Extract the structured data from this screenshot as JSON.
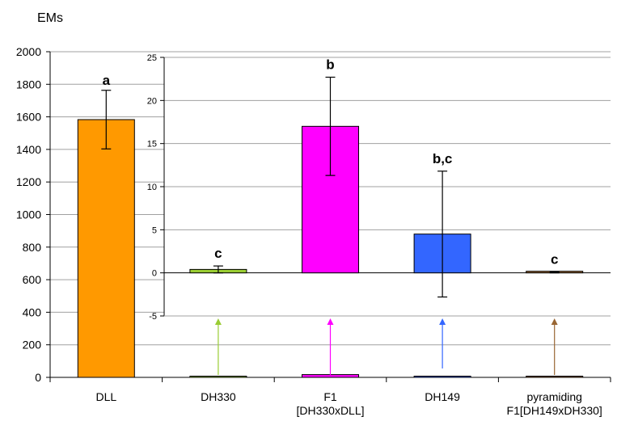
{
  "chart_data": [
    {
      "type": "bar",
      "ylabel": "EMs",
      "ylim": [
        0,
        2000
      ],
      "yticks": [
        0,
        200,
        400,
        600,
        800,
        1000,
        1200,
        1400,
        1600,
        1800,
        2000
      ],
      "grid": true,
      "categories": [
        "DLL",
        "DH330",
        "F1\n[DH330xDLL]",
        "DH149",
        "pyramiding\nF1[DH149xDH330]"
      ],
      "values": [
        1583,
        0.4,
        17,
        4.5,
        0.05
      ],
      "errors": [
        180,
        0.4,
        5.7,
        7.3,
        0.05
      ],
      "letters": [
        "a",
        "",
        "",
        "",
        ""
      ],
      "bar_colors": [
        "#ff9900",
        "#99cc33",
        "#ff00ff",
        "#3366ff",
        "#996633"
      ]
    },
    {
      "type": "bar",
      "inset": true,
      "ylim": [
        -5,
        25
      ],
      "yticks": [
        -5,
        0,
        5,
        10,
        15,
        20,
        25
      ],
      "grid": true,
      "categories": [
        "DH330",
        "F1\n[DH330xDLL]",
        "DH149",
        "pyramiding\nF1[DH149xDH330]"
      ],
      "values": [
        0.4,
        17,
        4.5,
        0.05
      ],
      "errors": [
        0.4,
        5.7,
        7.3,
        0.05
      ],
      "letters": [
        "c",
        "b",
        "b,c",
        "c"
      ],
      "bar_colors": [
        "#99cc33",
        "#ff00ff",
        "#3366ff",
        "#996633"
      ]
    }
  ]
}
